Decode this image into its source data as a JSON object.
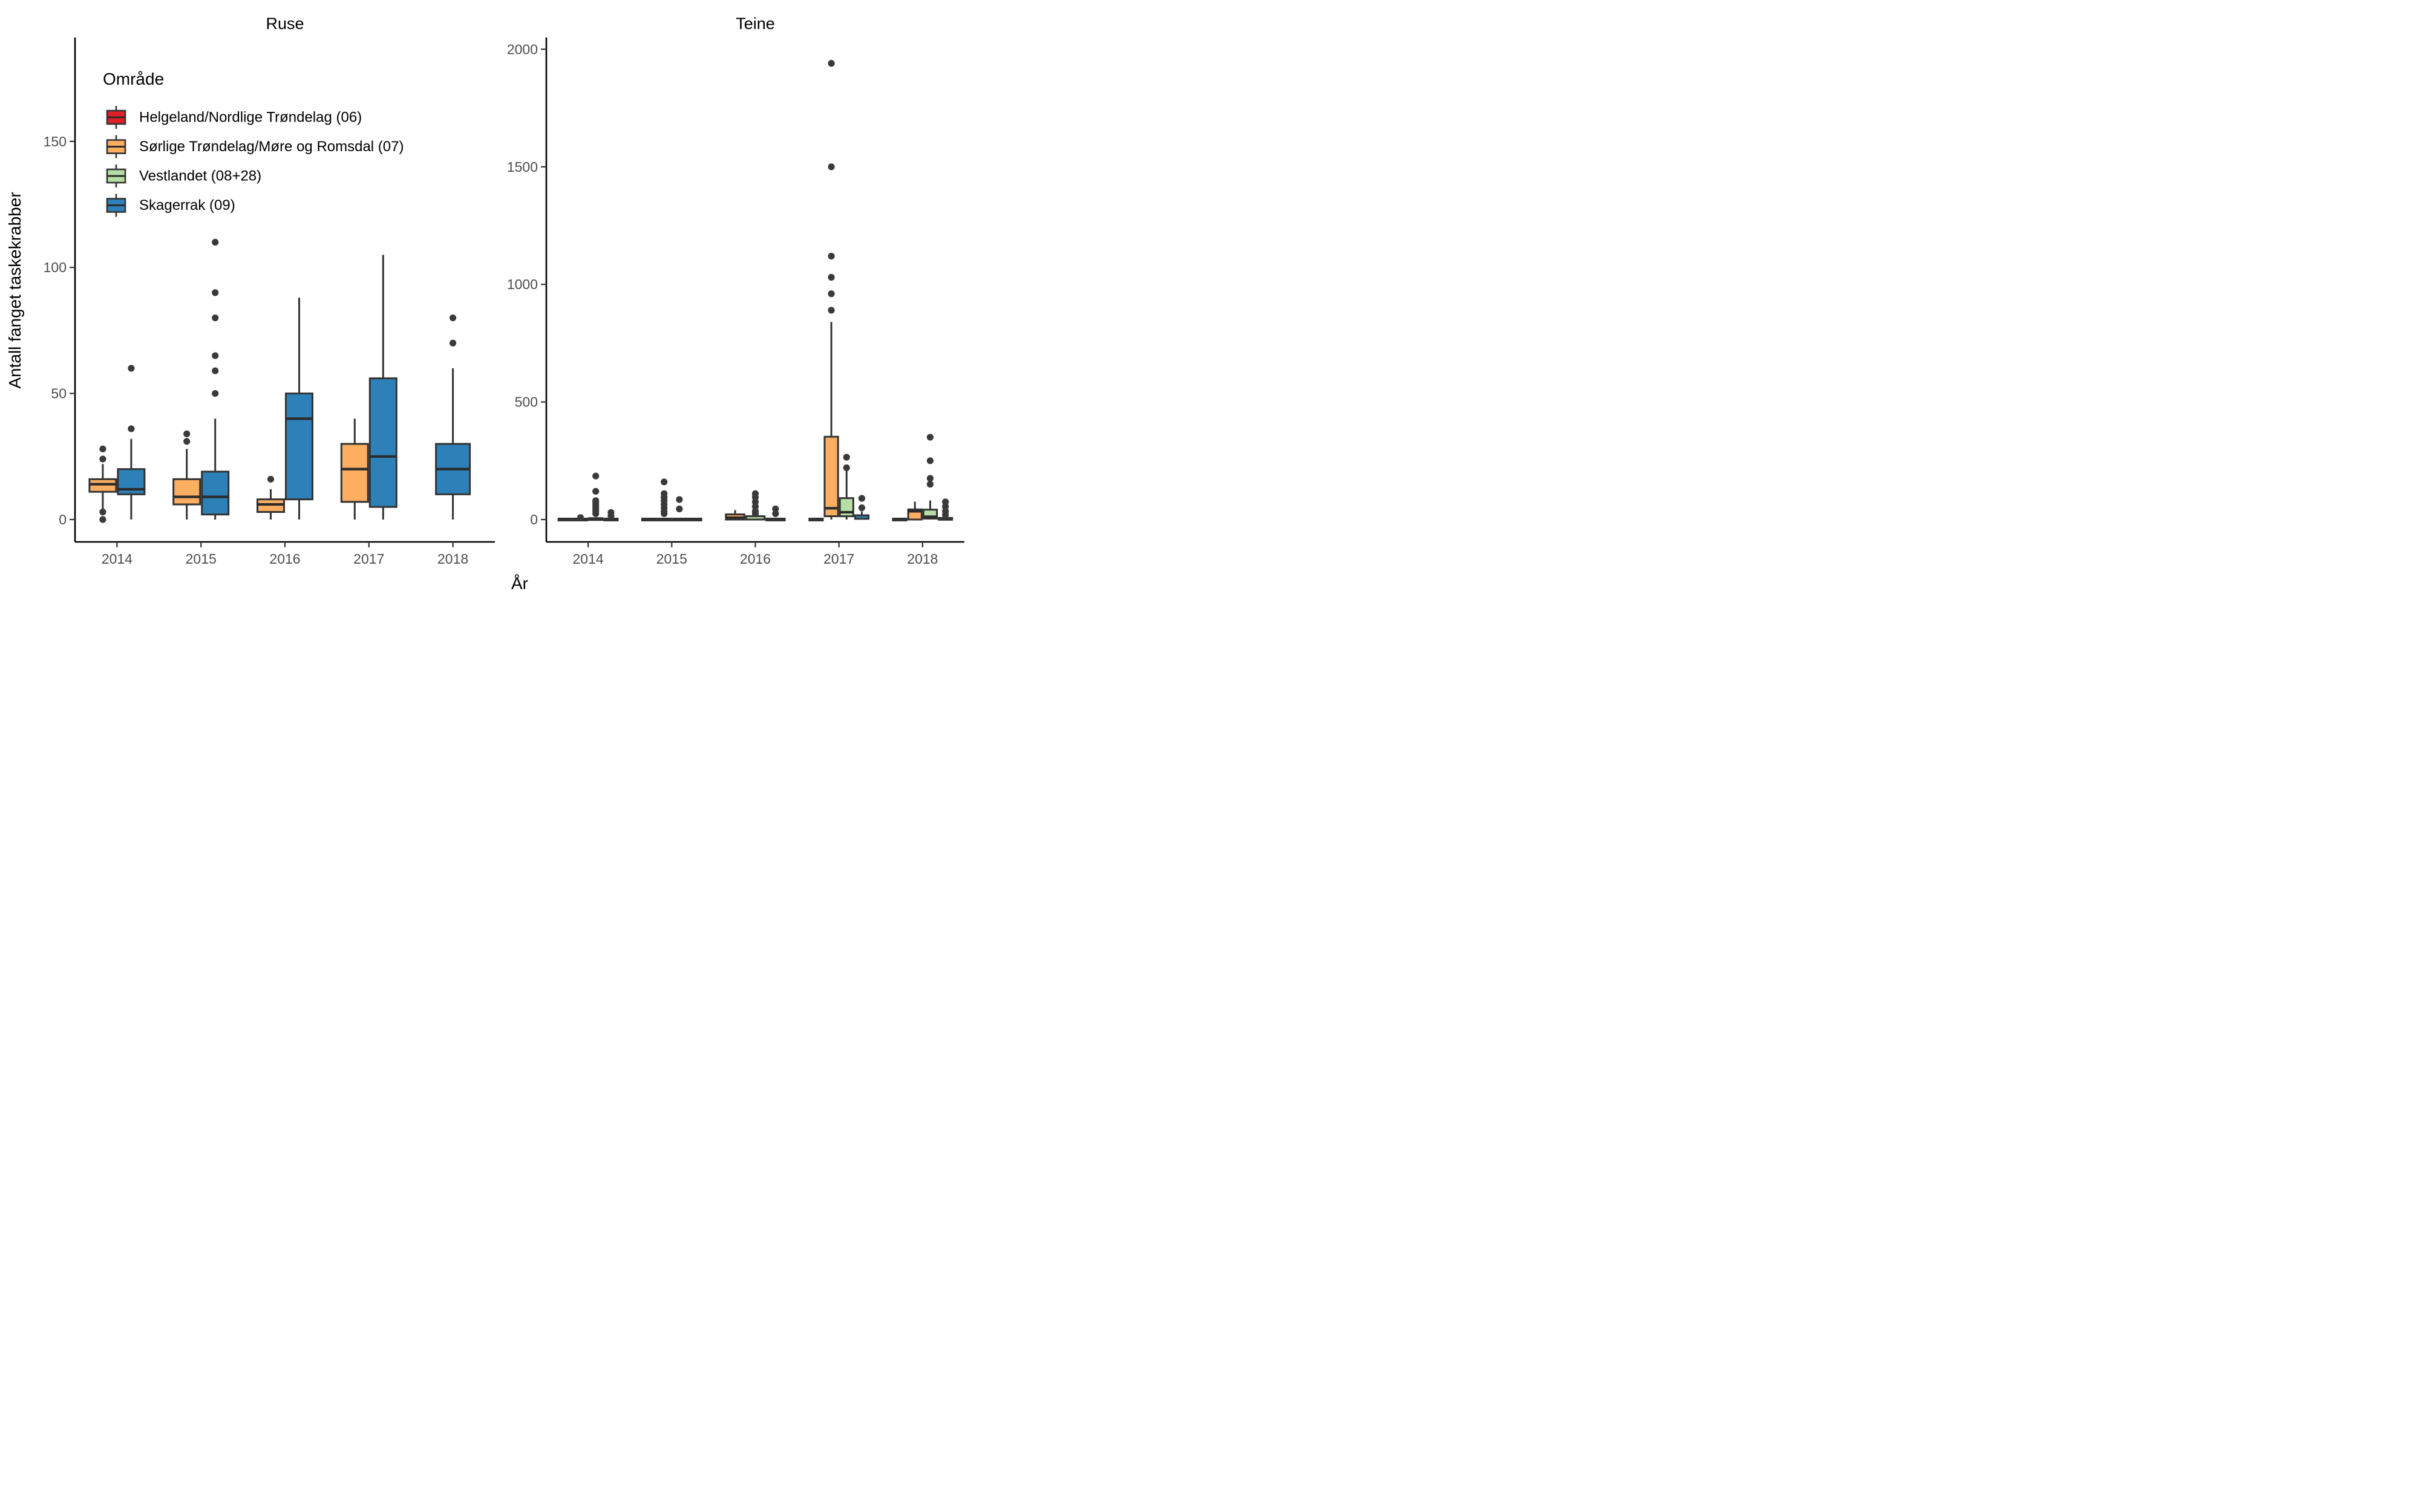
{
  "chart_data": {
    "type": "boxplot",
    "facets": [
      "Ruse",
      "Teine"
    ],
    "xlabel": "År",
    "ylabel": "Antall fanget taskekrabber",
    "years": [
      "2014",
      "2015",
      "2016",
      "2017",
      "2018"
    ],
    "legend": {
      "title": "Område",
      "entries": [
        {
          "key": "06",
          "label": "Helgeland/Nordlige Trøndelag (06)",
          "color": "#DE2126"
        },
        {
          "key": "07",
          "label": "Sørlige Trøndelag/Møre og Romsdal (07)",
          "color": "#FDAE61"
        },
        {
          "key": "08+28",
          "label": "Vestlandet (08+28)",
          "color": "#B5DFA5"
        },
        {
          "key": "09",
          "label": "Skagerrak (09)",
          "color": "#2E81B8"
        }
      ]
    },
    "style": {
      "box_stroke": "#333333",
      "median_color": "#2b2b2b",
      "whisker_color": "#333333",
      "outlier_color": "#3a3a3a",
      "tick_label_color": "#4d4d4d",
      "axis_color": "#000000",
      "background": "#ffffff"
    },
    "panels": [
      {
        "name": "Ruse",
        "ylim": [
          0,
          190
        ],
        "yticks": [
          0,
          50,
          100,
          150
        ],
        "groups": [
          {
            "year": "2014",
            "boxes": [
              {
                "area": "07",
                "lo": 4,
                "q1": 11,
                "med": 14,
                "q3": 16,
                "hi": 22,
                "outliers": [
                  0,
                  3,
                  24,
                  28
                ]
              },
              {
                "area": "09",
                "lo": 0,
                "q1": 10,
                "med": 12,
                "q3": 20,
                "hi": 32,
                "outliers": [
                  36,
                  60
                ]
              }
            ]
          },
          {
            "year": "2015",
            "boxes": [
              {
                "area": "07",
                "lo": 0,
                "q1": 6,
                "med": 9,
                "q3": 16,
                "hi": 28,
                "outliers": [
                  31,
                  34
                ]
              },
              {
                "area": "09",
                "lo": 0,
                "q1": 2,
                "med": 9,
                "q3": 19,
                "hi": 40,
                "outliers": [
                  50,
                  59,
                  65,
                  80,
                  90,
                  110
                ]
              }
            ]
          },
          {
            "year": "2016",
            "boxes": [
              {
                "area": "07",
                "lo": 0,
                "q1": 3,
                "med": 6,
                "q3": 8,
                "hi": 12,
                "outliers": [
                  16
                ]
              },
              {
                "area": "09",
                "lo": 0,
                "q1": 8,
                "med": 40,
                "q3": 50,
                "hi": 88,
                "outliers": []
              }
            ]
          },
          {
            "year": "2017",
            "boxes": [
              {
                "area": "07",
                "lo": 0,
                "q1": 7,
                "med": 20,
                "q3": 30,
                "hi": 40,
                "outliers": []
              },
              {
                "area": "09",
                "lo": 0,
                "q1": 5,
                "med": 25,
                "q3": 56,
                "hi": 105,
                "outliers": []
              }
            ]
          },
          {
            "year": "2018",
            "boxes": [
              {
                "area": "09",
                "lo": 0,
                "q1": 10,
                "med": 20,
                "q3": 30,
                "hi": 60,
                "outliers": [
                  70,
                  80
                ]
              }
            ]
          }
        ]
      },
      {
        "name": "Teine",
        "ylim": [
          0,
          2060
        ],
        "yticks": [
          0,
          500,
          1000,
          1500,
          2000
        ],
        "groups": [
          {
            "year": "2014",
            "boxes": [
              {
                "area": "06",
                "lo": 0,
                "q1": 0,
                "med": 0,
                "q3": 0,
                "hi": 0,
                "outliers": []
              },
              {
                "area": "07",
                "lo": 0,
                "q1": 0,
                "med": 0,
                "q3": 0,
                "hi": 0,
                "outliers": [
                  8
                ]
              },
              {
                "area": "08+28",
                "lo": 0,
                "q1": 0,
                "med": 0,
                "q3": 2,
                "hi": 2,
                "outliers": [
                  25,
                  35,
                  45,
                  55,
                  65,
                  75,
                  80,
                  120,
                  185
                ]
              },
              {
                "area": "09",
                "lo": 0,
                "q1": 0,
                "med": 0,
                "q3": 0,
                "hi": 0,
                "outliers": [
                  15,
                  30
                ]
              }
            ]
          },
          {
            "year": "2015",
            "boxes": [
              {
                "area": "06",
                "lo": 0,
                "q1": 0,
                "med": 0,
                "q3": 0,
                "hi": 0,
                "outliers": []
              },
              {
                "area": "07",
                "lo": 0,
                "q1": 0,
                "med": 0,
                "q3": 0,
                "hi": 0,
                "outliers": [
                  25,
                  35,
                  50,
                  65,
                  80,
                  95,
                  110,
                  160
                ]
              },
              {
                "area": "08+28",
                "lo": 0,
                "q1": 0,
                "med": 0,
                "q3": 0,
                "hi": 0,
                "outliers": [
                  45,
                  85
                ]
              },
              {
                "area": "09",
                "lo": 0,
                "q1": 0,
                "med": 0,
                "q3": 0,
                "hi": 0,
                "outliers": []
              }
            ]
          },
          {
            "year": "2016",
            "boxes": [
              {
                "area": "07",
                "lo": 0,
                "q1": 0,
                "med": 8,
                "q3": 22,
                "hi": 40,
                "outliers": []
              },
              {
                "area": "08+28",
                "lo": 0,
                "q1": 0,
                "med": 5,
                "q3": 14,
                "hi": 20,
                "outliers": [
                  25,
                  35,
                  55,
                  75,
                  95,
                  110
                ]
              },
              {
                "area": "09",
                "lo": 0,
                "q1": 0,
                "med": 0,
                "q3": 0,
                "hi": 0,
                "outliers": [
                  25,
                  45
                ]
              }
            ]
          },
          {
            "year": "2017",
            "boxes": [
              {
                "area": "06",
                "lo": 0,
                "q1": 0,
                "med": 0,
                "q3": 0,
                "hi": 0,
                "outliers": []
              },
              {
                "area": "07",
                "lo": 0,
                "q1": 14,
                "med": 48,
                "q3": 352,
                "hi": 840,
                "outliers": [
                  890,
                  960,
                  1030,
                  1120,
                  1500,
                  1940
                ]
              },
              {
                "area": "08+28",
                "lo": 0,
                "q1": 14,
                "med": 31,
                "q3": 91,
                "hi": 208,
                "outliers": [
                  220,
                  265
                ]
              },
              {
                "area": "09",
                "lo": 0,
                "q1": 3,
                "med": 8,
                "q3": 18,
                "hi": 35,
                "outliers": [
                  50,
                  90
                ]
              }
            ]
          },
          {
            "year": "2018",
            "boxes": [
              {
                "area": "06",
                "lo": 0,
                "q1": 0,
                "med": 0,
                "q3": 0,
                "hi": 0,
                "outliers": []
              },
              {
                "area": "07",
                "lo": 0,
                "q1": 0,
                "med": 35,
                "q3": 43,
                "hi": 76,
                "outliers": []
              },
              {
                "area": "08+28",
                "lo": 0,
                "q1": 4,
                "med": 12,
                "q3": 42,
                "hi": 81,
                "outliers": [
                  150,
                  175,
                  250,
                  350
                ]
              },
              {
                "area": "09",
                "lo": 0,
                "q1": 0,
                "med": 1,
                "q3": 3,
                "hi": 3,
                "outliers": [
                  20,
                  35,
                  55,
                  75
                ]
              }
            ]
          }
        ]
      }
    ]
  }
}
